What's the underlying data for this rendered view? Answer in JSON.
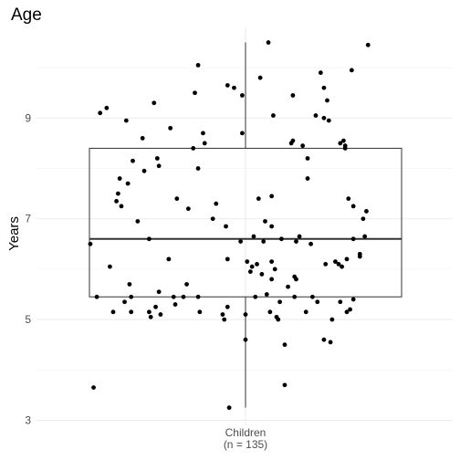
{
  "chart_data": {
    "type": "box",
    "title": "Age",
    "xlabel": "",
    "ylabel": "Years",
    "categories": [
      "Children\n(n = 135)"
    ],
    "ylim": [
      2.9,
      10.8
    ],
    "yticks": [
      3,
      5,
      7,
      9
    ],
    "grid": true,
    "box": {
      "min": 3.25,
      "q1": 5.45,
      "median": 6.6,
      "q3": 8.4,
      "max": 10.5
    },
    "points": [
      {
        "x": -0.95,
        "y": 6.5
      },
      {
        "x": -0.93,
        "y": 3.65
      },
      {
        "x": -0.91,
        "y": 5.45
      },
      {
        "x": -0.89,
        "y": 9.1
      },
      {
        "x": -0.85,
        "y": 9.2
      },
      {
        "x": -0.83,
        "y": 6.05
      },
      {
        "x": -0.81,
        "y": 5.15
      },
      {
        "x": -0.79,
        "y": 7.35
      },
      {
        "x": -0.78,
        "y": 7.5
      },
      {
        "x": -0.77,
        "y": 7.8
      },
      {
        "x": -0.76,
        "y": 7.25
      },
      {
        "x": -0.74,
        "y": 5.35
      },
      {
        "x": -0.73,
        "y": 8.95
      },
      {
        "x": -0.72,
        "y": 7.7
      },
      {
        "x": -0.71,
        "y": 5.7
      },
      {
        "x": -0.7,
        "y": 5.45
      },
      {
        "x": -0.7,
        "y": 5.15
      },
      {
        "x": -0.69,
        "y": 8.15
      },
      {
        "x": -0.66,
        "y": 6.95
      },
      {
        "x": -0.63,
        "y": 8.6
      },
      {
        "x": -0.62,
        "y": 7.95
      },
      {
        "x": -0.59,
        "y": 6.6
      },
      {
        "x": -0.59,
        "y": 5.15
      },
      {
        "x": -0.58,
        "y": 5.05
      },
      {
        "x": -0.56,
        "y": 9.3
      },
      {
        "x": -0.55,
        "y": 5.25
      },
      {
        "x": -0.54,
        "y": 8.2
      },
      {
        "x": -0.53,
        "y": 8.05
      },
      {
        "x": -0.53,
        "y": 5.55
      },
      {
        "x": -0.52,
        "y": 5.1
      },
      {
        "x": -0.47,
        "y": 6.2
      },
      {
        "x": -0.46,
        "y": 8.8
      },
      {
        "x": -0.44,
        "y": 5.45
      },
      {
        "x": -0.43,
        "y": 5.3
      },
      {
        "x": -0.42,
        "y": 7.4
      },
      {
        "x": -0.38,
        "y": 5.45
      },
      {
        "x": -0.36,
        "y": 5.7
      },
      {
        "x": -0.35,
        "y": 7.2
      },
      {
        "x": -0.32,
        "y": 8.4
      },
      {
        "x": -0.31,
        "y": 9.5
      },
      {
        "x": -0.29,
        "y": 10.05
      },
      {
        "x": -0.29,
        "y": 8.0
      },
      {
        "x": -0.29,
        "y": 5.45
      },
      {
        "x": -0.28,
        "y": 5.15
      },
      {
        "x": -0.26,
        "y": 8.7
      },
      {
        "x": -0.25,
        "y": 8.5
      },
      {
        "x": -0.2,
        "y": 7.0
      },
      {
        "x": -0.18,
        "y": 7.3
      },
      {
        "x": -0.14,
        "y": 5.1
      },
      {
        "x": -0.13,
        "y": 5.0
      },
      {
        "x": -0.12,
        "y": 6.85
      },
      {
        "x": -0.11,
        "y": 6.2
      },
      {
        "x": -0.11,
        "y": 9.65
      },
      {
        "x": -0.11,
        "y": 5.25
      },
      {
        "x": -0.1,
        "y": 3.25
      },
      {
        "x": -0.07,
        "y": 9.6
      },
      {
        "x": -0.03,
        "y": 6.55
      },
      {
        "x": -0.02,
        "y": 9.45
      },
      {
        "x": -0.02,
        "y": 8.7
      },
      {
        "x": 0.0,
        "y": 5.1
      },
      {
        "x": 0.0,
        "y": 4.6
      },
      {
        "x": 0.01,
        "y": 6.15
      },
      {
        "x": 0.03,
        "y": 5.95
      },
      {
        "x": 0.04,
        "y": 6.05
      },
      {
        "x": 0.05,
        "y": 6.65
      },
      {
        "x": 0.06,
        "y": 5.45
      },
      {
        "x": 0.07,
        "y": 6.1
      },
      {
        "x": 0.08,
        "y": 7.4
      },
      {
        "x": 0.09,
        "y": 9.8
      },
      {
        "x": 0.1,
        "y": 5.9
      },
      {
        "x": 0.11,
        "y": 6.55
      },
      {
        "x": 0.12,
        "y": 6.95
      },
      {
        "x": 0.13,
        "y": 5.5
      },
      {
        "x": 0.14,
        "y": 10.5
      },
      {
        "x": 0.15,
        "y": 5.15
      },
      {
        "x": 0.16,
        "y": 7.45
      },
      {
        "x": 0.16,
        "y": 6.85
      },
      {
        "x": 0.16,
        "y": 6.15
      },
      {
        "x": 0.16,
        "y": 5.8
      },
      {
        "x": 0.17,
        "y": 9.05
      },
      {
        "x": 0.18,
        "y": 6.0
      },
      {
        "x": 0.19,
        "y": 5.05
      },
      {
        "x": 0.2,
        "y": 5.0
      },
      {
        "x": 0.21,
        "y": 5.35
      },
      {
        "x": 0.22,
        "y": 6.6
      },
      {
        "x": 0.24,
        "y": 4.5
      },
      {
        "x": 0.24,
        "y": 3.7
      },
      {
        "x": 0.26,
        "y": 5.65
      },
      {
        "x": 0.28,
        "y": 8.5
      },
      {
        "x": 0.29,
        "y": 8.55
      },
      {
        "x": 0.29,
        "y": 9.45
      },
      {
        "x": 0.3,
        "y": 5.85
      },
      {
        "x": 0.3,
        "y": 5.45
      },
      {
        "x": 0.31,
        "y": 6.55
      },
      {
        "x": 0.31,
        "y": 5.8
      },
      {
        "x": 0.33,
        "y": 6.65
      },
      {
        "x": 0.35,
        "y": 8.45
      },
      {
        "x": 0.37,
        "y": 5.15
      },
      {
        "x": 0.38,
        "y": 8.2
      },
      {
        "x": 0.38,
        "y": 7.8
      },
      {
        "x": 0.4,
        "y": 6.5
      },
      {
        "x": 0.41,
        "y": 5.45
      },
      {
        "x": 0.43,
        "y": 9.05
      },
      {
        "x": 0.44,
        "y": 5.35
      },
      {
        "x": 0.46,
        "y": 9.9
      },
      {
        "x": 0.48,
        "y": 9.6
      },
      {
        "x": 0.48,
        "y": 4.6
      },
      {
        "x": 0.48,
        "y": 9.0
      },
      {
        "x": 0.49,
        "y": 6.1
      },
      {
        "x": 0.5,
        "y": 9.35
      },
      {
        "x": 0.51,
        "y": 8.95
      },
      {
        "x": 0.52,
        "y": 4.55
      },
      {
        "x": 0.53,
        "y": 5.0
      },
      {
        "x": 0.55,
        "y": 6.15
      },
      {
        "x": 0.57,
        "y": 6.1
      },
      {
        "x": 0.58,
        "y": 5.35
      },
      {
        "x": 0.58,
        "y": 8.5
      },
      {
        "x": 0.59,
        "y": 6.05
      },
      {
        "x": 0.6,
        "y": 8.55
      },
      {
        "x": 0.61,
        "y": 8.4
      },
      {
        "x": 0.61,
        "y": 8.45
      },
      {
        "x": 0.62,
        "y": 5.15
      },
      {
        "x": 0.62,
        "y": 6.2
      },
      {
        "x": 0.63,
        "y": 7.4
      },
      {
        "x": 0.64,
        "y": 5.2
      },
      {
        "x": 0.65,
        "y": 9.95
      },
      {
        "x": 0.66,
        "y": 7.25
      },
      {
        "x": 0.66,
        "y": 5.4
      },
      {
        "x": 0.66,
        "y": 6.6
      },
      {
        "x": 0.7,
        "y": 6.25
      },
      {
        "x": 0.7,
        "y": 6.3
      },
      {
        "x": 0.72,
        "y": 7.0
      },
      {
        "x": 0.73,
        "y": 6.65
      },
      {
        "x": 0.74,
        "y": 7.15
      },
      {
        "x": 0.75,
        "y": 10.45
      }
    ]
  }
}
